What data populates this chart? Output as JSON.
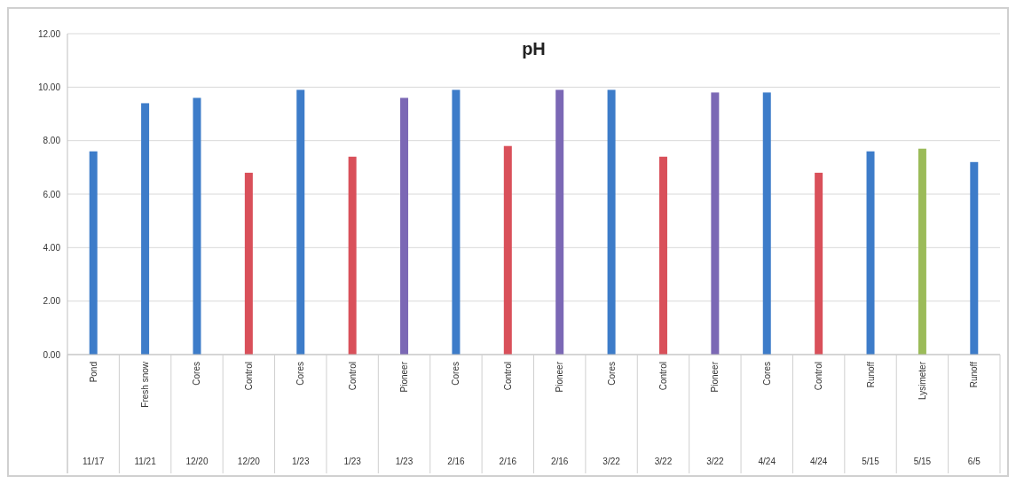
{
  "chart_data": {
    "type": "bar",
    "title": "pH",
    "categories": [
      "Pond 11/17",
      "Fresh snow 11/21",
      "Cores 12/20",
      "Control 12/20",
      "Cores 1/23",
      "Control 1/23",
      "Pioneer 1/23",
      "Cores 2/16",
      "Control 2/16",
      "Pioneer 2/16",
      "Cores 3/22",
      "Control 3/22",
      "Pioneer 3/22",
      "Cores 4/24",
      "Control 4/24",
      "Runoff 5/15",
      "Lysimeter 5/15",
      "Runoff 6/5"
    ],
    "values": [
      7.6,
      9.4,
      9.6,
      6.8,
      9.9,
      7.4,
      9.6,
      9.9,
      7.8,
      9.9,
      9.9,
      7.4,
      9.8,
      9.8,
      6.8,
      7.6,
      7.7,
      7.2
    ],
    "colors": [
      "#3d7cc9",
      "#3d7cc9",
      "#3d7cc9",
      "#d9505a",
      "#3d7cc9",
      "#d9505a",
      "#7b68b5",
      "#3d7cc9",
      "#d9505a",
      "#7b68b5",
      "#3d7cc9",
      "#d9505a",
      "#7b68b5",
      "#3d7cc9",
      "#d9505a",
      "#3d7cc9",
      "#9bbb59",
      "#3d7cc9"
    ],
    "ylim": [
      0,
      12
    ],
    "yticks": [
      {
        "value": 0,
        "label": "0.00"
      },
      {
        "value": 2,
        "label": "2.00"
      },
      {
        "value": 4,
        "label": "4.00"
      },
      {
        "value": 6,
        "label": "6.00"
      },
      {
        "value": 8,
        "label": "8.00"
      },
      {
        "value": 10,
        "label": "10.00"
      },
      {
        "value": 12,
        "label": "12.00"
      }
    ],
    "grid": "y"
  }
}
